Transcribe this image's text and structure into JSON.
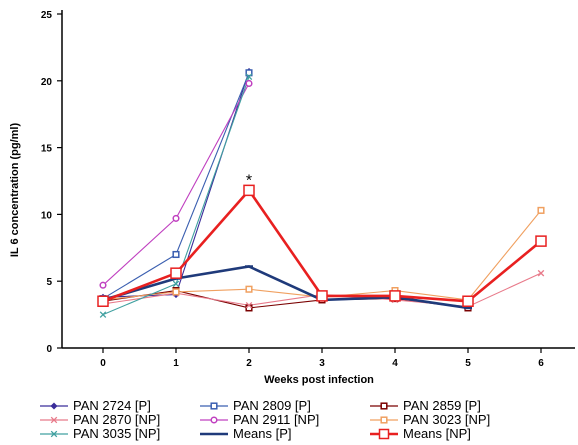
{
  "chart_data": {
    "type": "line",
    "xlabel": "Weeks post infection",
    "ylabel": "IL 6 concentration (pg/ml)",
    "x": [
      0,
      1,
      2,
      3,
      4,
      5,
      6
    ],
    "xlim": [
      0,
      6
    ],
    "ylim": [
      0,
      25
    ],
    "yticks": [
      0,
      5,
      10,
      15,
      20,
      25
    ],
    "grid": false,
    "legend_position": "bottom",
    "annotations": [
      {
        "text": "*",
        "x": 2,
        "y": 12.6
      }
    ],
    "series": [
      {
        "name": "PAN 2724 [P]",
        "color": "#3a2d9a",
        "marker": "diamond",
        "values": [
          3.8,
          4.0,
          20.7,
          null,
          null,
          null,
          null
        ]
      },
      {
        "name": "PAN 2809 [P]",
        "color": "#3b5fb0",
        "marker": "square",
        "values": [
          3.7,
          7.0,
          20.6,
          null,
          null,
          null,
          null
        ]
      },
      {
        "name": "PAN 2859 [P]",
        "color": "#7a0000",
        "marker": "square",
        "values": [
          3.5,
          4.3,
          3.0,
          3.6,
          3.7,
          3.0,
          null
        ]
      },
      {
        "name": "PAN 2870 [NP]",
        "color": "#e87a8a",
        "marker": "x",
        "values": [
          3.3,
          4.1,
          3.2,
          4.0,
          3.6,
          3.1,
          5.6
        ]
      },
      {
        "name": "PAN 2911 [NP]",
        "color": "#c040c0",
        "marker": "circle",
        "values": [
          4.7,
          9.7,
          19.8,
          null,
          null,
          null,
          null
        ]
      },
      {
        "name": "PAN 3023 [NP]",
        "color": "#f0a060",
        "marker": "square",
        "values": [
          3.6,
          4.2,
          4.4,
          3.8,
          4.3,
          3.6,
          10.3
        ]
      },
      {
        "name": "PAN 3035 [NP]",
        "color": "#40a0a0",
        "marker": "x",
        "values": [
          2.5,
          4.8,
          20.3,
          null,
          null,
          null,
          null
        ]
      },
      {
        "name": "Means [P]",
        "color": "#1f3a7a",
        "marker": "line",
        "values": [
          3.6,
          5.2,
          6.1,
          3.6,
          3.8,
          3.0,
          null
        ]
      },
      {
        "name": "Means [NP]",
        "color": "#e82020",
        "marker": "square",
        "values": [
          3.5,
          5.6,
          11.8,
          3.9,
          3.9,
          3.5,
          8.0
        ]
      }
    ]
  }
}
